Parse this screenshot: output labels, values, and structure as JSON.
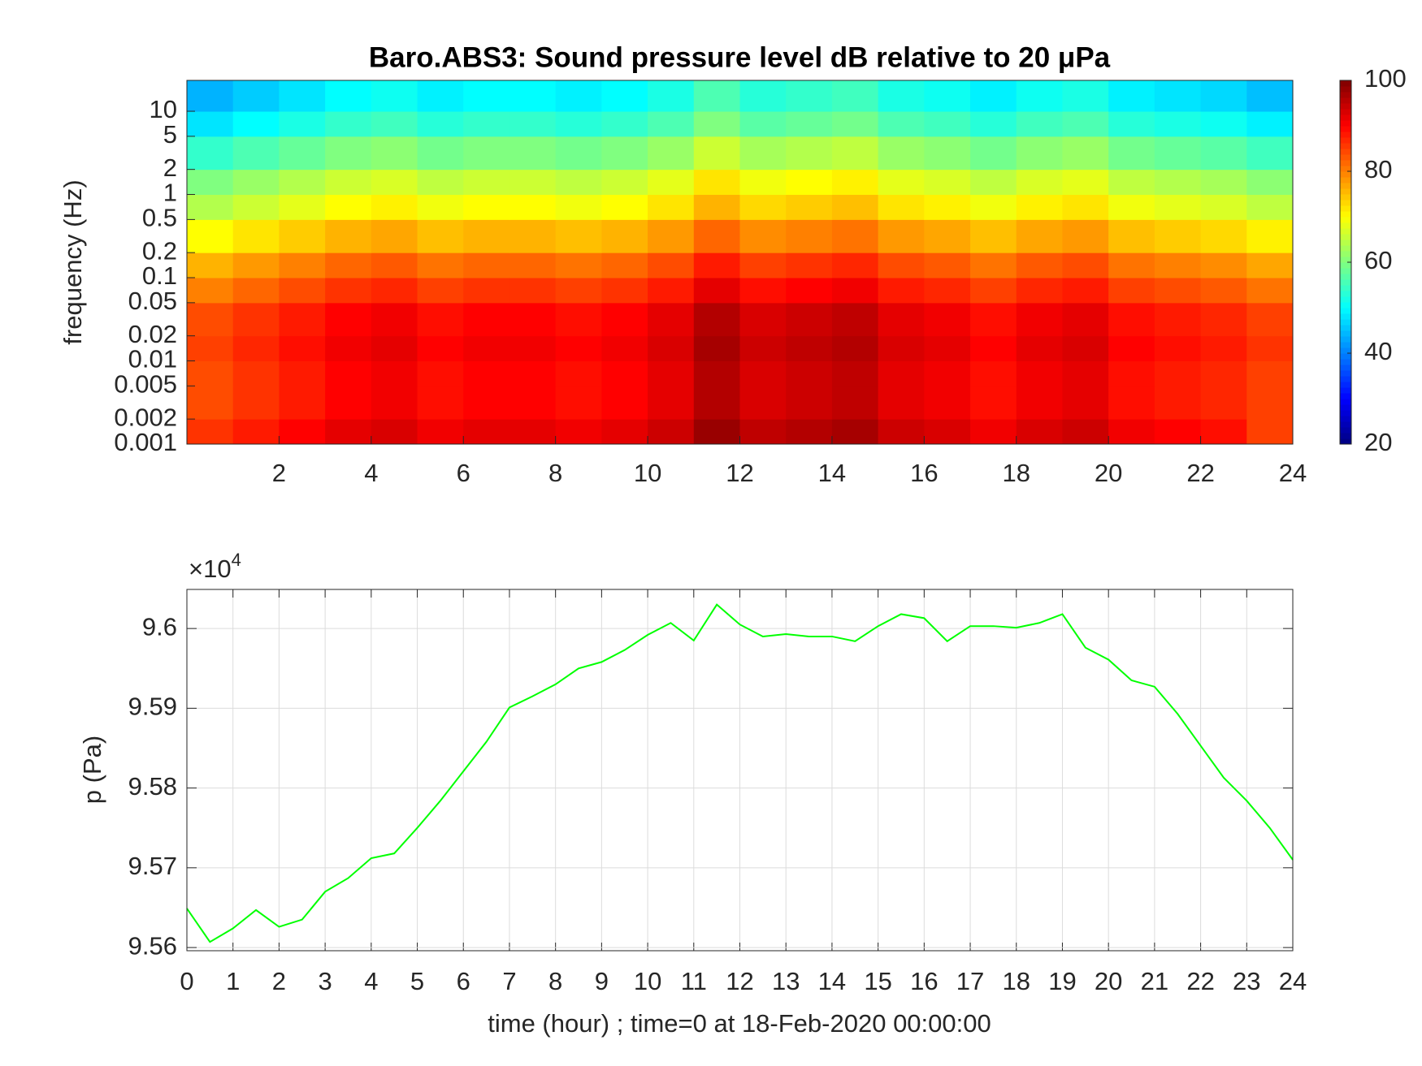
{
  "chart_data": [
    {
      "type": "heatmap",
      "title": "Baro.ABS3: Sound pressure level dB relative to 20 μPa",
      "y_label": "frequency (Hz)",
      "colormap": "jet",
      "x": [
        0,
        1,
        2,
        3,
        4,
        5,
        6,
        7,
        8,
        9,
        10,
        11,
        12,
        13,
        14,
        15,
        16,
        17,
        18,
        19,
        20,
        21,
        22,
        23,
        24
      ],
      "y": [
        0.001,
        0.002,
        0.005,
        0.01,
        0.02,
        0.05,
        0.1,
        0.2,
        0.5,
        1,
        2,
        5,
        10,
        23.5
      ],
      "z": [
        [
          86,
          88,
          90,
          92,
          93,
          91,
          92,
          92,
          91,
          92,
          94,
          98,
          95,
          96,
          97,
          94,
          93,
          91,
          93,
          94,
          91,
          90,
          89,
          85
        ],
        [
          84,
          86,
          88,
          90,
          91,
          89,
          90,
          90,
          89,
          90,
          92,
          96,
          93,
          94,
          95,
          92,
          91,
          89,
          91,
          92,
          89,
          88,
          87,
          85
        ],
        [
          84,
          86,
          88,
          90,
          91,
          89,
          90,
          90,
          89,
          90,
          92,
          96,
          93,
          94,
          95,
          92,
          91,
          89,
          91,
          92,
          89,
          88,
          87,
          85
        ],
        [
          85,
          87,
          89,
          91,
          92,
          90,
          91,
          91,
          90,
          91,
          93,
          97,
          94,
          95,
          96,
          93,
          92,
          90,
          92,
          93,
          90,
          89,
          88,
          86
        ],
        [
          84,
          86,
          88,
          90,
          91,
          89,
          90,
          90,
          89,
          90,
          92,
          96,
          93,
          94,
          95,
          92,
          91,
          89,
          91,
          92,
          89,
          88,
          87,
          85
        ],
        [
          80,
          82,
          84,
          86,
          87,
          85,
          86,
          86,
          85,
          86,
          88,
          92,
          89,
          90,
          91,
          88,
          87,
          85,
          87,
          88,
          85,
          84,
          83,
          81
        ],
        [
          76,
          78,
          80,
          82,
          83,
          81,
          82,
          82,
          81,
          82,
          84,
          88,
          85,
          86,
          87,
          84,
          83,
          81,
          83,
          84,
          81,
          80,
          79,
          77
        ],
        [
          70,
          72,
          74,
          76,
          77,
          75,
          76,
          76,
          75,
          76,
          78,
          82,
          79,
          80,
          81,
          78,
          77,
          75,
          77,
          78,
          75,
          74,
          73,
          71
        ],
        [
          64,
          66,
          68,
          70,
          71,
          69,
          70,
          70,
          69,
          70,
          72,
          76,
          73,
          74,
          75,
          72,
          71,
          69,
          71,
          72,
          69,
          68,
          67,
          65
        ],
        [
          60,
          62,
          64,
          66,
          67,
          65,
          66,
          66,
          65,
          66,
          68,
          72,
          69,
          70,
          71,
          68,
          67,
          65,
          67,
          68,
          65,
          64,
          63,
          61
        ],
        [
          54,
          56,
          58,
          60,
          61,
          59,
          60,
          60,
          59,
          60,
          62,
          66,
          63,
          64,
          65,
          62,
          61,
          59,
          61,
          62,
          59,
          58,
          57,
          55
        ],
        [
          48,
          50,
          52,
          54,
          55,
          53,
          54,
          54,
          53,
          54,
          56,
          60,
          57,
          58,
          59,
          56,
          55,
          53,
          55,
          56,
          53,
          52,
          51,
          49
        ],
        [
          44,
          46,
          48,
          50,
          51,
          49,
          50,
          50,
          49,
          50,
          52,
          56,
          53,
          54,
          55,
          52,
          51,
          49,
          51,
          52,
          49,
          48,
          47,
          45
        ]
      ],
      "xlim": [
        0,
        24
      ],
      "xticks": [
        2,
        4,
        6,
        8,
        10,
        12,
        14,
        16,
        18,
        20,
        22,
        24
      ],
      "ylim": [
        0.001,
        23.5
      ],
      "log_y": true,
      "yticks": [
        0.001,
        0.002,
        0.005,
        0.01,
        0.02,
        0.05,
        0.1,
        0.2,
        0.5,
        1,
        2,
        5,
        10
      ],
      "clim": [
        20,
        100
      ],
      "cticks": [
        20,
        40,
        60,
        80,
        100
      ]
    },
    {
      "type": "line",
      "y_label": "p (Pa)",
      "x_label": "time (hour) ; time=0 at 18-Feb-2020 00:00:00",
      "y_multiplier": "×10",
      "y_multiplier_exp": "4",
      "color": "#00ff00",
      "grid": true,
      "x": [
        0,
        0.5,
        1,
        1.5,
        2,
        2.5,
        3,
        3.5,
        4,
        4.5,
        5,
        5.5,
        6,
        6.5,
        7,
        7.5,
        8,
        8.5,
        9,
        9.5,
        10,
        10.5,
        11,
        11.5,
        12,
        12.5,
        13,
        13.5,
        14,
        14.5,
        15,
        15.5,
        16,
        16.5,
        17,
        17.5,
        18,
        18.5,
        19,
        19.5,
        20,
        20.5,
        21,
        21.5,
        22,
        22.5,
        23,
        23.5,
        24
      ],
      "values": [
        9.5649,
        9.5607,
        9.5624,
        9.5647,
        9.5626,
        9.5635,
        9.567,
        9.5687,
        9.5712,
        9.5718,
        9.575,
        9.5784,
        9.5821,
        9.5858,
        9.5901,
        9.5915,
        9.593,
        9.595,
        9.5958,
        9.5973,
        9.5992,
        9.6007,
        9.5985,
        9.603,
        9.6005,
        9.599,
        9.5993,
        9.599,
        9.599,
        9.5984,
        9.6003,
        9.6018,
        9.6013,
        9.5984,
        9.6003,
        9.6003,
        9.6001,
        9.6007,
        9.6018,
        9.5976,
        9.5961,
        9.5935,
        9.5927,
        9.5893,
        9.5853,
        9.5813,
        9.5784,
        9.575,
        9.571
      ],
      "xlim": [
        0,
        24
      ],
      "xticks": [
        0,
        1,
        2,
        3,
        4,
        5,
        6,
        7,
        8,
        9,
        10,
        11,
        12,
        13,
        14,
        15,
        16,
        17,
        18,
        19,
        20,
        21,
        22,
        23,
        24
      ],
      "ylim": [
        9.5596,
        9.6049
      ],
      "yticks": [
        9.56,
        9.57,
        9.58,
        9.59,
        9.6
      ]
    }
  ]
}
